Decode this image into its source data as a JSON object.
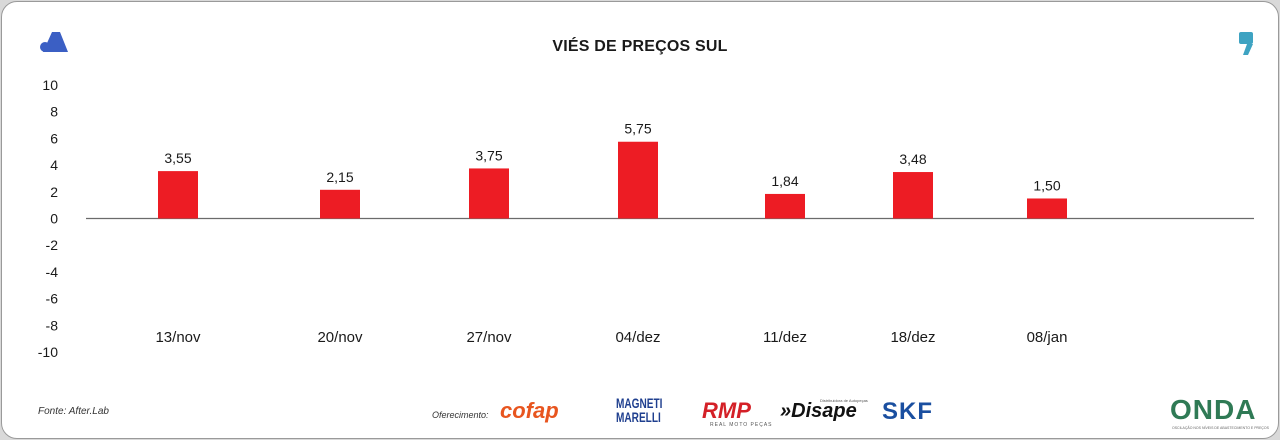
{
  "colors": {
    "bar": "#ed1c24",
    "axis": "#6b6b6b",
    "text": "#1a1a1a",
    "accent_blue": "#3b5fc4",
    "accent_teal": "#3ea3c2"
  },
  "source": "Fonte: After.Lab",
  "sponsor_label": "Oferecimento:",
  "sponsors": {
    "cofap": "cofap",
    "magneti": "MAGNETI MARELLI",
    "rmp": "RMP",
    "rmp_sub": "REAL MOTO PEÇAS",
    "disape": "»Disape",
    "disape_sub": "Distribuidora de Autopeças",
    "skf": "SKF",
    "onda": "ONDA",
    "onda_sub": "OSCILAÇÃO NOS NÍVEIS DE ABASTECIMENTO E PREÇOS"
  },
  "icons": {
    "top_left": "after-lab-logo-icon",
    "top_right": "quote-mark-icon"
  },
  "chart_data": {
    "type": "bar",
    "title": "VIÉS DE PREÇOS SUL",
    "categories": [
      "13/nov",
      "20/nov",
      "27/nov",
      "04/dez",
      "11/dez",
      "18/dez",
      "08/jan"
    ],
    "values": [
      3.55,
      2.15,
      3.75,
      5.75,
      1.84,
      3.48,
      1.5
    ],
    "value_labels": [
      "3,55",
      "2,15",
      "3,75",
      "5,75",
      "1,84",
      "3,48",
      "1,50"
    ],
    "ylim": [
      -10,
      10
    ],
    "yticks": [
      10,
      8,
      6,
      4,
      2,
      0,
      -2,
      -4,
      -6,
      -8,
      -10
    ],
    "xlabel": "",
    "ylabel": "",
    "grid": false,
    "legend": "none"
  }
}
